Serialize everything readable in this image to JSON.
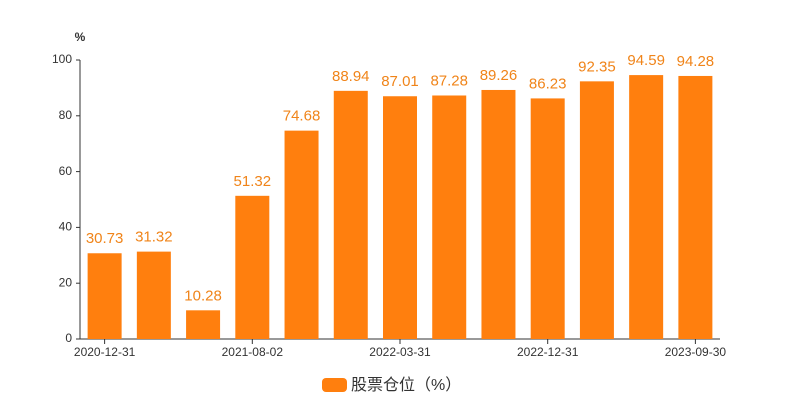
{
  "chart_data": {
    "type": "bar",
    "y_label": "%",
    "categories": [
      "2020-12-31",
      null,
      null,
      "2021-08-02",
      null,
      null,
      "2022-03-31",
      null,
      null,
      "2022-12-31",
      null,
      null,
      "2023-09-30"
    ],
    "series": [
      {
        "name": "股票仓位（%）",
        "color": "#ff7f0e",
        "values": [
          30.73,
          31.32,
          10.28,
          51.32,
          74.68,
          88.94,
          87.01,
          87.28,
          89.26,
          86.23,
          92.35,
          94.59,
          94.28
        ]
      }
    ],
    "ylim": [
      0,
      100
    ],
    "yticks": [
      0,
      20,
      40,
      60,
      80,
      100
    ],
    "grid": false,
    "legend": "bottom"
  }
}
